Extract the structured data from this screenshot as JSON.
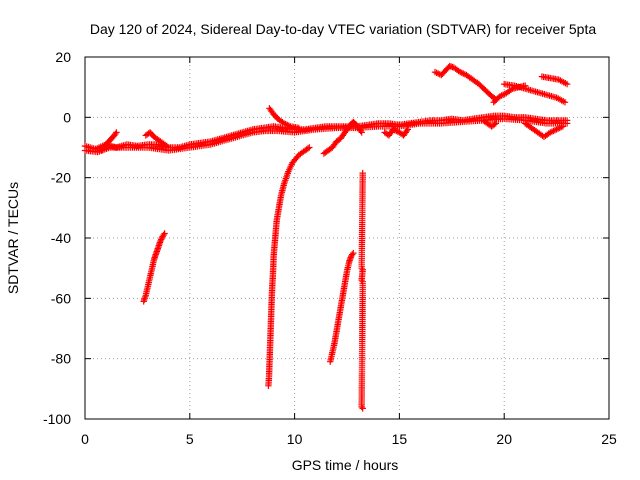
{
  "chart_data": {
    "type": "scatter",
    "title": "Day 120 of 2024, Sidereal Day-to-day VTEC variation (SDTVAR) for receiver 5pta",
    "xlabel": "GPS time / hours",
    "ylabel": "SDTVAR / TECUs",
    "xlim": [
      0,
      25
    ],
    "ylim": [
      -100,
      20
    ],
    "xticks": [
      0,
      5,
      10,
      15,
      20,
      25
    ],
    "yticks": [
      -100,
      -80,
      -60,
      -40,
      -20,
      0,
      20
    ],
    "xtick_labels": [
      "0",
      "5",
      "10",
      "15",
      "20",
      "25"
    ],
    "ytick_labels": [
      "-100",
      "-80",
      "-60",
      "-40",
      "-20",
      "0",
      "20"
    ],
    "grid": true,
    "marker": "+",
    "color": "#ff0000",
    "series": [
      {
        "name": "near-zero band A",
        "points": [
          [
            0,
            -9.5
          ],
          [
            0.5,
            -10.5
          ],
          [
            1.0,
            -9
          ],
          [
            1.5,
            -10
          ],
          [
            2.0,
            -9
          ],
          [
            2.5,
            -9.5
          ],
          [
            3.0,
            -9
          ],
          [
            3.5,
            -9
          ],
          [
            4.0,
            -10
          ],
          [
            4.5,
            -10
          ],
          [
            5.0,
            -9
          ],
          [
            5.5,
            -8.5
          ],
          [
            6.0,
            -8
          ],
          [
            6.5,
            -7
          ],
          [
            7.0,
            -6
          ],
          [
            7.5,
            -5
          ],
          [
            8.0,
            -4
          ],
          [
            8.5,
            -3.5
          ],
          [
            9.0,
            -3
          ],
          [
            9.5,
            -3.5
          ],
          [
            10.0,
            -4
          ],
          [
            10.5,
            -4
          ],
          [
            11.0,
            -3.5
          ],
          [
            11.5,
            -3
          ],
          [
            12.0,
            -3
          ],
          [
            12.5,
            -3
          ],
          [
            13.0,
            -3
          ],
          [
            13.5,
            -2.5
          ],
          [
            14.0,
            -2
          ],
          [
            14.5,
            -2
          ],
          [
            15.0,
            -2.5
          ],
          [
            15.5,
            -2
          ],
          [
            16.0,
            -1.5
          ],
          [
            16.5,
            -1
          ],
          [
            17.0,
            -1
          ],
          [
            17.5,
            -0.5
          ],
          [
            18.0,
            -1
          ],
          [
            18.5,
            -0.5
          ],
          [
            19.0,
            0
          ],
          [
            19.5,
            0.5
          ],
          [
            20.0,
            0.5
          ],
          [
            20.5,
            0
          ],
          [
            21.0,
            0
          ],
          [
            21.5,
            -0.5
          ],
          [
            22.0,
            -1
          ],
          [
            22.5,
            -1
          ],
          [
            23.0,
            -1
          ]
        ]
      },
      {
        "name": "near-zero band B",
        "points": [
          [
            0,
            -11
          ],
          [
            0.6,
            -11.5
          ],
          [
            1.2,
            -10
          ],
          [
            2.0,
            -10
          ],
          [
            3.0,
            -10
          ],
          [
            4.0,
            -11
          ],
          [
            5.0,
            -10
          ],
          [
            6.0,
            -9
          ],
          [
            7.0,
            -7
          ],
          [
            8.0,
            -5
          ],
          [
            8.6,
            -4.5
          ],
          [
            9.2,
            -4.5
          ],
          [
            10.0,
            -5
          ],
          [
            11.0,
            -4
          ],
          [
            12.0,
            -3.5
          ],
          [
            13.0,
            -3.5
          ],
          [
            14.0,
            -3
          ],
          [
            15.0,
            -3
          ],
          [
            16.0,
            -2
          ],
          [
            17.0,
            -2
          ],
          [
            18.0,
            -1.5
          ],
          [
            19.0,
            -1
          ],
          [
            20.0,
            -0.5
          ],
          [
            21.0,
            -1
          ],
          [
            22.0,
            -2
          ],
          [
            23.0,
            -2
          ]
        ]
      },
      {
        "name": "arc rising at hour 0.5-1.5",
        "points": [
          [
            0.8,
            -11
          ],
          [
            1.0,
            -9
          ],
          [
            1.2,
            -7.5
          ],
          [
            1.4,
            -6
          ],
          [
            1.5,
            -5
          ]
        ]
      },
      {
        "name": "spike near hour 3",
        "points": [
          [
            2.9,
            -6
          ],
          [
            3.1,
            -5
          ],
          [
            3.3,
            -6.5
          ],
          [
            3.6,
            -8
          ],
          [
            3.9,
            -9.5
          ]
        ]
      },
      {
        "name": "descending arc from hour 8.8",
        "points": [
          [
            8.8,
            3
          ],
          [
            9.0,
            1
          ],
          [
            9.2,
            -0.5
          ],
          [
            9.5,
            -2
          ],
          [
            9.8,
            -3
          ],
          [
            10.2,
            -3.5
          ]
        ]
      },
      {
        "name": "feature near hour 12",
        "points": [
          [
            11.4,
            -12
          ],
          [
            11.6,
            -11
          ],
          [
            11.8,
            -10
          ],
          [
            12.0,
            -8
          ],
          [
            12.2,
            -7
          ],
          [
            12.4,
            -5
          ],
          [
            12.6,
            -3
          ],
          [
            12.8,
            -1.5
          ],
          [
            13.0,
            -3
          ],
          [
            13.2,
            -5
          ]
        ]
      },
      {
        "name": "dips near hour 14-15.5",
        "points": [
          [
            14.3,
            -5
          ],
          [
            14.5,
            -6
          ],
          [
            14.7,
            -4
          ],
          [
            15.0,
            -5
          ],
          [
            15.2,
            -6
          ],
          [
            15.4,
            -4
          ]
        ]
      },
      {
        "name": "upper segment hour 16.7-19",
        "points": [
          [
            16.7,
            15
          ],
          [
            17.0,
            14
          ],
          [
            17.4,
            17
          ],
          [
            17.6,
            16.5
          ],
          [
            17.9,
            15
          ],
          [
            18.2,
            14
          ],
          [
            18.5,
            12.5
          ],
          [
            18.8,
            11
          ],
          [
            19.1,
            9
          ],
          [
            19.4,
            7
          ],
          [
            19.6,
            6
          ]
        ]
      },
      {
        "name": "rising segment hour 19.5-21",
        "points": [
          [
            19.5,
            5
          ],
          [
            19.8,
            7
          ],
          [
            20.1,
            8
          ],
          [
            20.4,
            9.5
          ],
          [
            20.7,
            10
          ],
          [
            21.0,
            10.5
          ]
        ]
      },
      {
        "name": "upper segment hour 20-23",
        "points": [
          [
            20.0,
            11
          ],
          [
            20.5,
            10.5
          ],
          [
            21.0,
            9.5
          ],
          [
            21.5,
            8.5
          ],
          [
            22.0,
            7.5
          ],
          [
            22.5,
            6.5
          ],
          [
            22.9,
            5
          ]
        ]
      },
      {
        "name": "upper segment hour 21.8-23",
        "points": [
          [
            21.8,
            13.5
          ],
          [
            22.2,
            13
          ],
          [
            22.6,
            12.5
          ],
          [
            23.0,
            11
          ]
        ]
      },
      {
        "name": "falling cluster hour 21-23",
        "points": [
          [
            21.0,
            -2
          ],
          [
            21.3,
            -3.5
          ],
          [
            21.6,
            -5
          ],
          [
            21.9,
            -6.5
          ],
          [
            22.2,
            -5
          ],
          [
            22.5,
            -4
          ],
          [
            22.8,
            -3
          ]
        ]
      },
      {
        "name": "falling stack hour 19-20",
        "points": [
          [
            19.0,
            -1
          ],
          [
            19.2,
            -2
          ],
          [
            19.4,
            -3
          ],
          [
            19.6,
            -2
          ]
        ]
      },
      {
        "name": "steep track hour 2.8-3.8",
        "points": [
          [
            2.8,
            -61
          ],
          [
            2.9,
            -59
          ],
          [
            3.0,
            -56
          ],
          [
            3.1,
            -53
          ],
          [
            3.2,
            -50
          ],
          [
            3.3,
            -47
          ],
          [
            3.4,
            -45
          ],
          [
            3.5,
            -43
          ],
          [
            3.6,
            -41
          ],
          [
            3.7,
            -39.5
          ],
          [
            3.8,
            -38.5
          ]
        ]
      },
      {
        "name": "curve hour 8.7-10.7",
        "points": [
          [
            8.75,
            -89
          ],
          [
            8.78,
            -86
          ],
          [
            8.8,
            -82
          ],
          [
            8.82,
            -78
          ],
          [
            8.84,
            -74
          ],
          [
            8.86,
            -70
          ],
          [
            8.88,
            -66
          ],
          [
            8.9,
            -62
          ],
          [
            8.92,
            -58
          ],
          [
            8.95,
            -54
          ],
          [
            8.98,
            -50
          ],
          [
            9.0,
            -46
          ],
          [
            9.05,
            -42
          ],
          [
            9.1,
            -38
          ],
          [
            9.15,
            -34
          ],
          [
            9.25,
            -30
          ],
          [
            9.35,
            -26
          ],
          [
            9.5,
            -22
          ],
          [
            9.7,
            -18
          ],
          [
            9.9,
            -15
          ],
          [
            10.2,
            -12.5
          ],
          [
            10.5,
            -11
          ],
          [
            10.7,
            -10
          ]
        ]
      },
      {
        "name": "steep track hour 11.7-12.8",
        "points": [
          [
            11.7,
            -81
          ],
          [
            11.8,
            -78
          ],
          [
            11.9,
            -75
          ],
          [
            12.0,
            -71
          ],
          [
            12.1,
            -67
          ],
          [
            12.2,
            -63
          ],
          [
            12.3,
            -59
          ],
          [
            12.4,
            -55
          ],
          [
            12.5,
            -51
          ],
          [
            12.6,
            -48
          ],
          [
            12.7,
            -46
          ],
          [
            12.8,
            -45
          ]
        ]
      },
      {
        "name": "isolated points hour 13.2",
        "points": [
          [
            13.25,
            -18.5
          ],
          [
            13.2,
            -50
          ],
          [
            13.25,
            -50.5
          ],
          [
            13.2,
            -54
          ],
          [
            13.25,
            -54.5
          ],
          [
            13.2,
            -96
          ],
          [
            13.25,
            -96.5
          ]
        ]
      }
    ]
  }
}
